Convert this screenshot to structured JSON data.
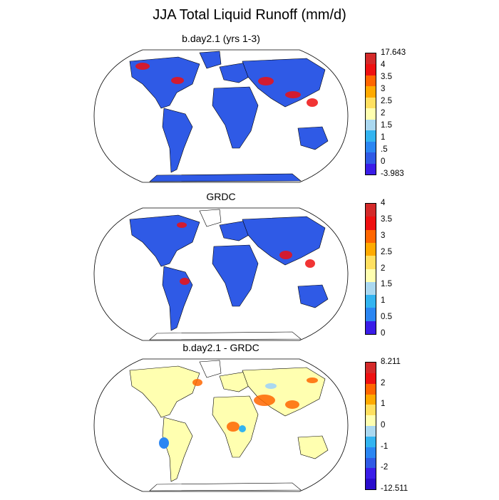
{
  "title": "JJA Total Liquid Runoff (mm/d)",
  "panels": [
    {
      "title": "b.day2.1 (yrs 1-3)",
      "colorbar": {
        "labels": [
          "17.643",
          "4",
          "3.5",
          "3",
          "2.5",
          "2",
          "1.5",
          "1",
          ".5",
          "0",
          "-3.983"
        ],
        "colors": [
          "#d42a2a",
          "#ee1111",
          "#ff6600",
          "#ffaa00",
          "#ffe060",
          "#ffffb0",
          "#aad8f0",
          "#33b4f0",
          "#2b86f2",
          "#2f5ae6",
          "#3a1de8"
        ]
      }
    },
    {
      "title": "GRDC",
      "colorbar": {
        "labels": [
          "4",
          "3.5",
          "3",
          "2.5",
          "2",
          "1.5",
          "1",
          "0.5",
          "0"
        ],
        "colors": [
          "#d42a2a",
          "#ee1111",
          "#ff6600",
          "#ffaa00",
          "#ffe060",
          "#ffffb0",
          "#aad8f0",
          "#33b4f0",
          "#2b86f2",
          "#3a1de8"
        ]
      }
    },
    {
      "title": "b.day2.1 - GRDC",
      "colorbar": {
        "labels": [
          "8.211",
          "2",
          "1",
          "0",
          "-1",
          "-2",
          "-12.511"
        ],
        "colors": [
          "#d42a2a",
          "#ee1111",
          "#ff6600",
          "#ffaa00",
          "#ffe060",
          "#ffffb0",
          "#aad8f0",
          "#33b4f0",
          "#2b86f2",
          "#2f5ae6",
          "#3a1de8",
          "#2a0dcc"
        ]
      }
    }
  ],
  "palette": {
    "ocean_outline": "#000000",
    "map1_land": "#2f5ae6",
    "map1_hot": "#ee1111",
    "map2_land": "#2f5ae6",
    "map2_hot": "#ee1111",
    "map3_land": "#ffffb0",
    "map3_hot": "#ff6600"
  }
}
